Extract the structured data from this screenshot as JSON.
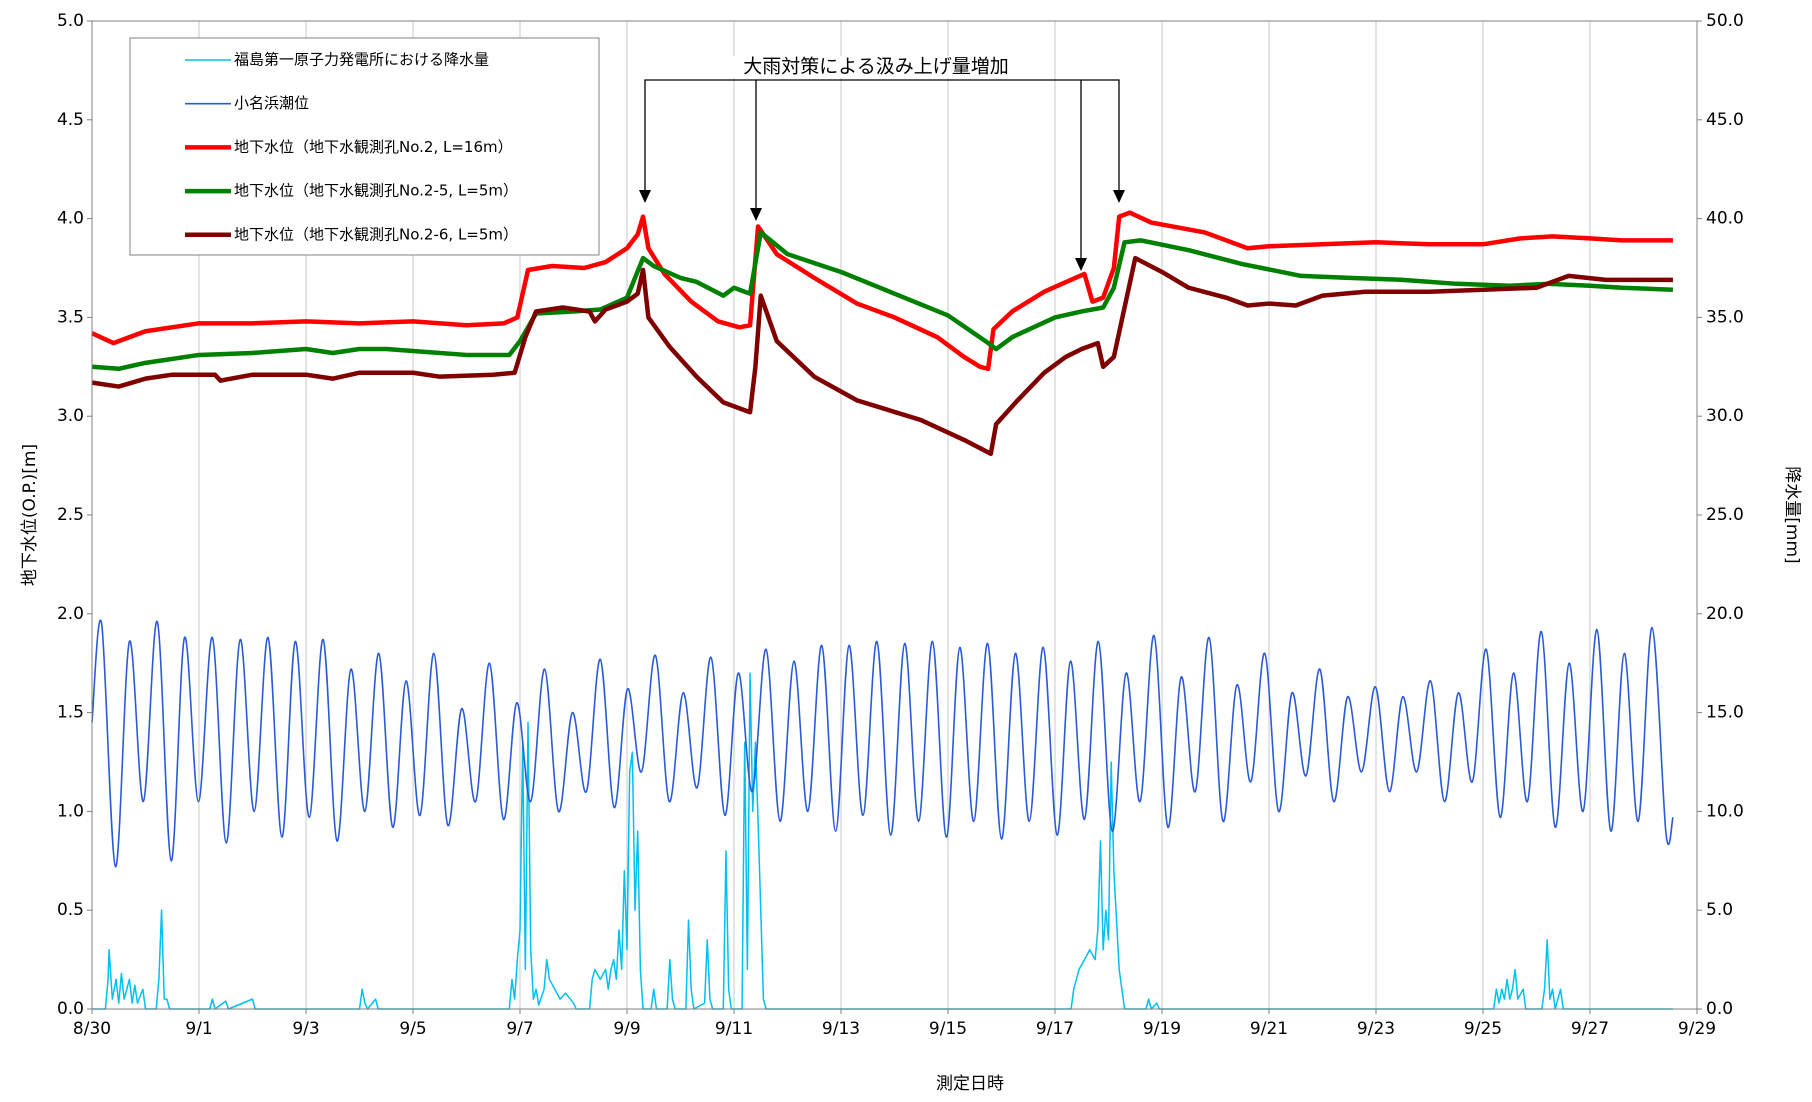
{
  "chart_data": {
    "type": "line",
    "annotation": "大雨対策による汲み上げ量増加",
    "x_label": "測定日時",
    "y_label": "地下水位(O.P.)[m]",
    "y2_label": "降水量[mm]",
    "xlim": [
      0,
      30
    ],
    "xticks": [
      {
        "value": 0,
        "label": "8/30"
      },
      {
        "value": 2,
        "label": "9/1"
      },
      {
        "value": 4,
        "label": "9/3"
      },
      {
        "value": 6,
        "label": "9/5"
      },
      {
        "value": 8,
        "label": "9/7"
      },
      {
        "value": 10,
        "label": "9/9"
      },
      {
        "value": 12,
        "label": "9/11"
      },
      {
        "value": 14,
        "label": "9/13"
      },
      {
        "value": 16,
        "label": "9/15"
      },
      {
        "value": 18,
        "label": "9/17"
      },
      {
        "value": 20,
        "label": "9/19"
      },
      {
        "value": 22,
        "label": "9/21"
      },
      {
        "value": 24,
        "label": "9/23"
      },
      {
        "value": 26,
        "label": "9/25"
      },
      {
        "value": 28,
        "label": "9/27"
      },
      {
        "value": 30,
        "label": "9/29"
      }
    ],
    "ylim": [
      0,
      5
    ],
    "yticks": [
      {
        "value": 0,
        "label": "0.0"
      },
      0.5,
      {
        "value": 1,
        "label": "1.0"
      },
      1.5,
      {
        "value": 2,
        "label": "2.0"
      },
      2.5,
      {
        "value": 3,
        "label": "3.0"
      },
      3.5,
      {
        "value": 4,
        "label": "4.0"
      },
      4.5,
      {
        "value": 5,
        "label": "5.0"
      }
    ],
    "y2lim": [
      0,
      50
    ],
    "y2ticks": [
      {
        "value": 0,
        "label": "0.0"
      },
      {
        "value": 5,
        "label": "5.0"
      },
      {
        "value": 10,
        "label": "10.0"
      },
      {
        "value": 15,
        "label": "15.0"
      },
      {
        "value": 20,
        "label": "20.0"
      },
      {
        "value": 25,
        "label": "25.0"
      },
      {
        "value": 30,
        "label": "30.0"
      },
      {
        "value": 35,
        "label": "35.0"
      },
      {
        "value": 40,
        "label": "40.0"
      },
      {
        "value": 45,
        "label": "45.0"
      },
      {
        "value": 50,
        "label": "50.0"
      }
    ],
    "grid": true,
    "legend": "upper left",
    "series": [
      {
        "name": "福島第一原子力発電所における降水量",
        "color": "#00c0f0",
        "axis": "y2",
        "x": [
          0,
          0.25,
          0.3,
          0.32,
          0.38,
          0.45,
          0.5,
          0.55,
          0.6,
          0.7,
          0.75,
          0.8,
          0.85,
          0.95,
          1.0,
          1.2,
          1.25,
          1.3,
          1.35,
          1.4,
          1.45,
          2.2,
          2.25,
          2.3,
          2.5,
          2.55,
          3.0,
          3.05,
          5.0,
          5.05,
          5.1,
          5.15,
          5.3,
          5.35,
          7.8,
          7.85,
          7.9,
          7.95,
          8.0,
          8.05,
          8.1,
          8.15,
          8.2,
          8.25,
          8.3,
          8.35,
          8.45,
          8.5,
          8.55,
          8.65,
          8.75,
          8.85,
          9.0,
          9.05,
          9.3,
          9.35,
          9.4,
          9.5,
          9.6,
          9.65,
          9.7,
          9.75,
          9.8,
          9.85,
          9.9,
          9.95,
          10.0,
          10.05,
          10.1,
          10.15,
          10.2,
          10.25,
          10.3,
          10.45,
          10.5,
          10.55,
          10.75,
          10.8,
          10.85,
          10.9,
          11.1,
          11.15,
          11.2,
          11.25,
          11.45,
          11.5,
          11.55,
          11.6,
          11.8,
          11.85,
          11.9,
          11.95,
          12.15,
          12.2,
          12.25,
          12.3,
          12.35,
          12.4,
          12.45,
          12.5,
          12.55,
          12.6,
          18.3,
          18.35,
          18.45,
          18.55,
          18.65,
          18.75,
          18.8,
          18.85,
          18.9,
          18.95,
          19.0,
          19.05,
          19.1,
          19.15,
          19.2,
          19.25,
          19.3,
          19.7,
          19.75,
          19.8,
          19.9,
          19.95,
          26.2,
          26.25,
          26.3,
          26.35,
          26.4,
          26.45,
          26.5,
          26.55,
          26.6,
          26.65,
          26.75,
          26.8,
          27.1,
          27.15,
          27.2,
          27.25,
          27.3,
          27.35,
          27.45,
          27.5,
          29.55
        ],
        "values": [
          0,
          0,
          1.5,
          3.0,
          0.5,
          1.5,
          0.3,
          1.8,
          0.5,
          1.5,
          0.3,
          1.2,
          0.3,
          1.0,
          0,
          0,
          1.5,
          5.0,
          0.5,
          0.5,
          0,
          0,
          0.5,
          0,
          0.4,
          0,
          0.5,
          0,
          0,
          1.0,
          0.3,
          0,
          0.5,
          0,
          0,
          1.5,
          0.5,
          2.5,
          4.0,
          13.5,
          2.0,
          14.5,
          3.0,
          0.5,
          1.0,
          0.2,
          1.0,
          2.5,
          1.5,
          1.0,
          0.5,
          0.8,
          0.3,
          0,
          0,
          1.5,
          2.0,
          1.5,
          2.0,
          1.0,
          2.0,
          2.5,
          1.5,
          4.0,
          2.0,
          7.0,
          3.0,
          12.0,
          13.0,
          5.0,
          9.0,
          2.0,
          0,
          0,
          1.0,
          0,
          0,
          2.5,
          0.5,
          0,
          0,
          4.5,
          1.0,
          0,
          0.3,
          3.5,
          0.5,
          0,
          0,
          8.0,
          1.0,
          0,
          0,
          13.5,
          2.0,
          17.0,
          10.0,
          13.5,
          9.5,
          5.0,
          0.5,
          0,
          0,
          1.0,
          2.0,
          2.5,
          3.0,
          2.5,
          4.0,
          8.5,
          3.0,
          5.0,
          3.5,
          12.5,
          7.0,
          4.5,
          2.0,
          1.0,
          0,
          0,
          0.5,
          0,
          0.3,
          0,
          0,
          1.0,
          0.3,
          1.0,
          0.5,
          1.5,
          0.5,
          1.0,
          2.0,
          0.5,
          1.0,
          0,
          0,
          1.0,
          3.5,
          0.5,
          1.0,
          0,
          1.0,
          0,
          0
        ]
      },
      {
        "name": "小名浜潮位",
        "color": "#2a5bd7",
        "x": [
          0,
          0.18,
          0.44,
          0.7,
          0.96,
          1.22,
          1.48,
          1.73,
          1.99,
          2.25,
          2.51,
          2.77,
          3.03,
          3.29,
          3.55,
          3.8,
          4.06,
          4.32,
          4.58,
          4.84,
          5.1,
          5.36,
          5.62,
          5.87,
          6.13,
          6.39,
          6.65,
          6.91,
          7.17,
          7.43,
          7.69,
          7.94,
          8.2,
          8.46,
          8.72,
          8.98,
          9.24,
          9.5,
          9.76,
          10.01,
          10.27,
          10.53,
          10.79,
          11.05,
          11.31,
          11.57,
          11.83,
          12.08,
          12.34,
          12.6,
          12.86,
          13.12,
          13.38,
          13.64,
          13.9,
          14.15,
          14.41,
          14.67,
          14.93,
          15.19,
          15.45,
          15.71,
          15.97,
          16.22,
          16.48,
          16.74,
          17.0,
          17.26,
          17.52,
          17.78,
          18.04,
          18.29,
          18.55,
          18.81,
          19.07,
          19.33,
          19.59,
          19.85,
          20.11,
          20.36,
          20.62,
          20.88,
          21.14,
          21.4,
          21.66,
          21.92,
          22.18,
          22.43,
          22.69,
          22.95,
          23.21,
          23.47,
          23.73,
          23.99,
          24.25,
          24.5,
          24.76,
          25.02,
          25.28,
          25.54,
          25.8,
          26.06,
          26.32,
          26.57,
          26.83,
          27.09,
          27.35,
          27.61,
          27.87,
          28.13,
          28.39,
          28.64,
          28.9,
          29.16,
          29.42,
          29.55
        ],
        "values": [
          1.45,
          1.95,
          0.72,
          1.86,
          1.05,
          1.96,
          0.75,
          1.88,
          1.05,
          1.88,
          0.84,
          1.87,
          1.0,
          1.88,
          0.87,
          1.86,
          0.97,
          1.87,
          0.85,
          1.72,
          1.0,
          1.8,
          0.92,
          1.66,
          0.98,
          1.8,
          0.93,
          1.52,
          1.05,
          1.75,
          0.96,
          1.55,
          1.05,
          1.72,
          1.0,
          1.5,
          1.1,
          1.77,
          1.02,
          1.62,
          1.2,
          1.79,
          1.05,
          1.6,
          1.12,
          1.78,
          0.98,
          1.7,
          1.1,
          1.82,
          0.95,
          1.76,
          1.0,
          1.84,
          0.9,
          1.84,
          0.98,
          1.86,
          0.88,
          1.85,
          0.95,
          1.86,
          0.87,
          1.83,
          0.95,
          1.85,
          0.86,
          1.8,
          0.95,
          1.83,
          0.88,
          1.76,
          0.96,
          1.86,
          0.9,
          1.7,
          1.05,
          1.89,
          0.92,
          1.68,
          1.1,
          1.88,
          0.95,
          1.64,
          1.15,
          1.8,
          1.0,
          1.6,
          1.18,
          1.72,
          1.05,
          1.58,
          1.2,
          1.63,
          1.1,
          1.58,
          1.2,
          1.66,
          1.05,
          1.6,
          1.15,
          1.82,
          0.97,
          1.7,
          1.05,
          1.91,
          0.92,
          1.75,
          1.0,
          1.92,
          0.9,
          1.8,
          0.95,
          1.93,
          0.89,
          0.97
        ]
      },
      {
        "name": "地下水位（地下水観測孔No.2, L=16m）",
        "color": "#ff0000",
        "x": [
          0,
          0.4,
          1,
          2,
          3,
          4,
          5,
          6,
          7,
          7.7,
          7.95,
          8.15,
          8.6,
          9.2,
          9.6,
          10,
          10.2,
          10.3,
          10.4,
          10.7,
          11.2,
          11.7,
          12.1,
          12.3,
          12.45,
          12.8,
          13.5,
          14.3,
          15,
          15.8,
          16.3,
          16.6,
          16.75,
          16.85,
          17.2,
          17.8,
          18.3,
          18.55,
          18.7,
          18.9,
          19.1,
          19.2,
          19.4,
          19.8,
          20.8,
          21.6,
          22,
          23,
          24,
          25,
          26,
          26.7,
          27.3,
          28,
          28.6,
          29.55
        ],
        "values": [
          3.42,
          3.37,
          3.43,
          3.47,
          3.47,
          3.48,
          3.47,
          3.48,
          3.46,
          3.47,
          3.5,
          3.74,
          3.76,
          3.75,
          3.78,
          3.85,
          3.92,
          4.01,
          3.85,
          3.72,
          3.58,
          3.48,
          3.45,
          3.46,
          3.96,
          3.82,
          3.7,
          3.57,
          3.5,
          3.4,
          3.3,
          3.25,
          3.24,
          3.44,
          3.53,
          3.63,
          3.69,
          3.72,
          3.58,
          3.6,
          3.75,
          4.01,
          4.03,
          3.98,
          3.93,
          3.85,
          3.86,
          3.87,
          3.88,
          3.87,
          3.87,
          3.9,
          3.91,
          3.9,
          3.89,
          3.89
        ]
      },
      {
        "name": "地下水位（地下水観測孔No.2-5, L=5m）",
        "color": "#008000",
        "x": [
          0,
          0.5,
          1,
          2,
          3,
          4,
          4.5,
          5,
          5.5,
          6,
          7,
          7.8,
          8.0,
          8.3,
          9,
          9.5,
          10,
          10.3,
          10.5,
          11,
          11.3,
          11.8,
          12,
          12.3,
          12.5,
          13,
          14,
          15,
          16,
          16.7,
          16.9,
          17.2,
          18,
          18.5,
          18.9,
          19.1,
          19.3,
          19.6,
          20.5,
          21.5,
          22.6,
          23.5,
          24.5,
          25.5,
          26.5,
          27.2,
          28,
          28.6,
          29.55
        ],
        "values": [
          3.25,
          3.24,
          3.27,
          3.31,
          3.32,
          3.34,
          3.32,
          3.34,
          3.34,
          3.33,
          3.31,
          3.31,
          3.38,
          3.52,
          3.53,
          3.54,
          3.6,
          3.8,
          3.76,
          3.7,
          3.68,
          3.61,
          3.65,
          3.62,
          3.93,
          3.82,
          3.73,
          3.62,
          3.51,
          3.38,
          3.34,
          3.4,
          3.5,
          3.53,
          3.55,
          3.65,
          3.88,
          3.89,
          3.84,
          3.77,
          3.71,
          3.7,
          3.69,
          3.67,
          3.66,
          3.67,
          3.66,
          3.65,
          3.64
        ]
      },
      {
        "name": "地下水位（地下水観測孔No.2-6, L=5m）",
        "color": "#800000",
        "x": [
          0,
          0.5,
          1,
          1.5,
          2.3,
          2.4,
          3,
          4,
          4.5,
          5,
          6,
          6.5,
          7.5,
          7.9,
          8.1,
          8.3,
          8.8,
          9.3,
          9.4,
          9.6,
          10,
          10.2,
          10.3,
          10.4,
          10.8,
          11.3,
          11.8,
          12.2,
          12.3,
          12.4,
          12.5,
          12.8,
          13.5,
          14.3,
          15.5,
          16.3,
          16.8,
          16.9,
          17.3,
          17.8,
          18.2,
          18.5,
          18.8,
          18.9,
          19.1,
          19.3,
          19.5,
          20,
          20.5,
          21.2,
          21.6,
          22,
          22.5,
          23,
          23.8,
          25,
          26,
          27,
          27.6,
          28.3,
          29,
          29.55
        ],
        "values": [
          3.17,
          3.15,
          3.19,
          3.21,
          3.21,
          3.18,
          3.21,
          3.21,
          3.19,
          3.22,
          3.22,
          3.2,
          3.21,
          3.22,
          3.4,
          3.53,
          3.55,
          3.53,
          3.48,
          3.54,
          3.58,
          3.62,
          3.74,
          3.5,
          3.35,
          3.2,
          3.07,
          3.03,
          3.02,
          3.25,
          3.61,
          3.38,
          3.2,
          3.08,
          2.98,
          2.88,
          2.81,
          2.96,
          3.08,
          3.22,
          3.3,
          3.34,
          3.37,
          3.25,
          3.3,
          3.55,
          3.8,
          3.73,
          3.65,
          3.6,
          3.56,
          3.57,
          3.56,
          3.61,
          3.63,
          3.63,
          3.64,
          3.65,
          3.71,
          3.69,
          3.69,
          3.69
        ]
      }
    ]
  }
}
